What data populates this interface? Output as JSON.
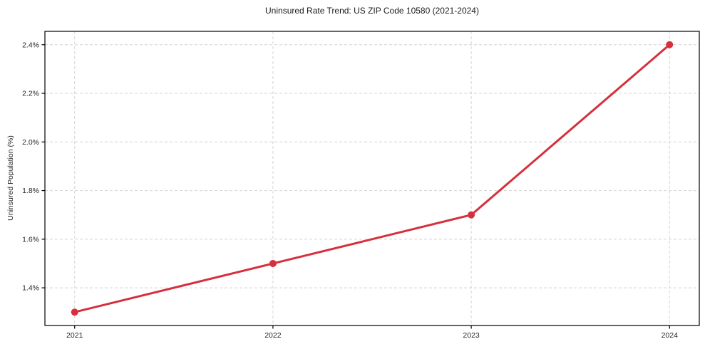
{
  "chart_data": {
    "type": "line",
    "title": "Uninsured Rate Trend: US ZIP Code 10580 (2021-2024)",
    "xlabel": "",
    "ylabel": "Uninsured Population (%)",
    "x": [
      2021,
      2022,
      2023,
      2024
    ],
    "series": [
      {
        "name": "Uninsured rate",
        "values": [
          1.3,
          1.5,
          1.7,
          2.4
        ]
      }
    ],
    "xticks": [
      2021,
      2022,
      2023,
      2024
    ],
    "xtick_labels": [
      "2021",
      "2022",
      "2023",
      "2024"
    ],
    "yticks": [
      1.4,
      1.6,
      1.8,
      2.0,
      2.2,
      2.4
    ],
    "ytick_labels": [
      "1.4%",
      "1.6%",
      "1.8%",
      "2.0%",
      "2.2%",
      "2.4%"
    ],
    "xlim": [
      2020.85,
      2024.15
    ],
    "ylim": [
      1.245,
      2.455
    ],
    "grid": true,
    "grid_style": "dashed",
    "legend": "none",
    "colors": {
      "line": "#d5303c",
      "marker": "#d5303c",
      "grid": "#d4d4d4",
      "spine": "#000000",
      "tick": "#262626",
      "title_text": "#1a1a1a",
      "background": "#ffffff"
    },
    "line_width": 3,
    "marker_size": 5
  }
}
